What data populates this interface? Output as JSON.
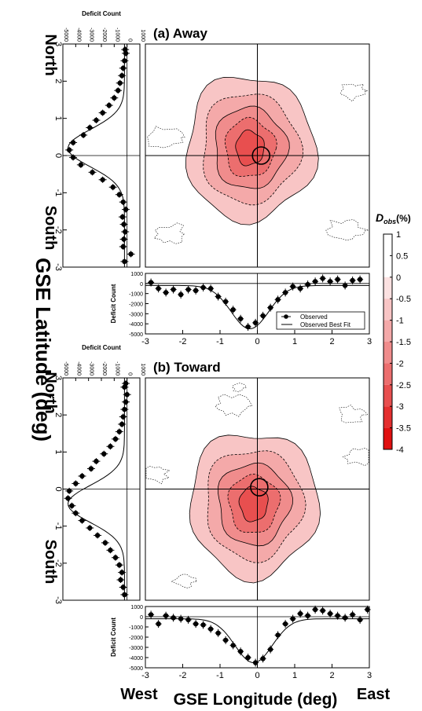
{
  "figure": {
    "ylabel": "GSE Latitude (deg)",
    "xlabel": "GSE Longitude (deg)",
    "west_label": "West",
    "east_label": "East",
    "north_label": "North",
    "south_label": "South"
  },
  "colorbar": {
    "title": "D",
    "title_sub": "obs",
    "title_suffix": "(%)",
    "ticks": [
      "1",
      "0.5",
      "0",
      "-0.5",
      "-1",
      "-1.5",
      "-2",
      "-2.5",
      "-3",
      "-3.5",
      "-4"
    ],
    "colors": [
      "#ffffff",
      "#ffffff",
      "#fbe1e1",
      "#f8c5c5",
      "#f4a9a9",
      "#f08c8c",
      "#ec6e6e",
      "#e84f4f",
      "#e42f2f",
      "#e01010"
    ]
  },
  "chart_data": [
    {
      "type": "heatmap",
      "title": "(a) Away",
      "xlim": [
        -3,
        3
      ],
      "ylim": [
        -3,
        3
      ],
      "x_ticks": [
        "-3",
        "-2",
        "-1",
        "0",
        "1",
        "2",
        "3"
      ],
      "y_ticks": [
        "-3",
        "-2",
        "-1",
        "0",
        "1",
        "2",
        "3"
      ],
      "deficit_center": [
        -0.2,
        0.2
      ],
      "levels": [
        -0.5,
        -1,
        -1.5,
        -2,
        -2.5
      ],
      "side_panel": {
        "xlabel": "Deficit Count",
        "x_ticks": [
          "-5000",
          "-4000",
          "-3000",
          "-2000",
          "-1000",
          "0",
          "1000"
        ],
        "latitudes": [
          -2.85,
          -2.65,
          -2.45,
          -2.25,
          -2.05,
          -1.85,
          -1.65,
          -1.45,
          -1.25,
          -1.05,
          -0.85,
          -0.65,
          -0.45,
          -0.25,
          -0.05,
          0.15,
          0.35,
          0.55,
          0.75,
          0.95,
          1.15,
          1.35,
          1.55,
          1.75,
          1.95,
          2.15,
          2.35,
          2.55,
          2.75,
          2.85
        ],
        "counts": [
          -200,
          300,
          -300,
          -250,
          -150,
          -250,
          -350,
          -100,
          -300,
          -600,
          -1100,
          -1900,
          -2700,
          -3600,
          -4200,
          -4500,
          -4200,
          -3400,
          -2900,
          -2400,
          -1900,
          -1400,
          -1000,
          -700,
          -550,
          -400,
          -300,
          -200,
          -100,
          -150
        ]
      },
      "bottom_panel": {
        "ylabel": "Deficit Count",
        "y_ticks": [
          "1000",
          "0",
          "-1000",
          "-2000",
          "-3000",
          "-4000",
          "-5000"
        ],
        "longitudes": [
          -2.85,
          -2.65,
          -2.45,
          -2.25,
          -2.05,
          -1.85,
          -1.65,
          -1.45,
          -1.25,
          -1.05,
          -0.85,
          -0.65,
          -0.45,
          -0.25,
          -0.05,
          0.15,
          0.35,
          0.55,
          0.75,
          0.95,
          1.15,
          1.35,
          1.55,
          1.75,
          1.95,
          2.15,
          2.35,
          2.55,
          2.75
        ],
        "counts": [
          100,
          -500,
          -900,
          -600,
          -1100,
          -600,
          -700,
          -400,
          -500,
          -1300,
          -1800,
          -2600,
          -3500,
          -4300,
          -3900,
          -3200,
          -2400,
          -1600,
          -900,
          -300,
          -500,
          -100,
          200,
          500,
          200,
          400,
          -200,
          300,
          400
        ],
        "legend": [
          "Observed",
          "Observed Best Fit"
        ]
      }
    },
    {
      "type": "heatmap",
      "title": "(b) Toward",
      "xlim": [
        -3,
        3
      ],
      "ylim": [
        -3,
        3
      ],
      "x_ticks": [
        "-3",
        "-2",
        "-1",
        "0",
        "1",
        "2",
        "3"
      ],
      "y_ticks": [
        "-3",
        "-2",
        "-1",
        "0",
        "1",
        "2",
        "3"
      ],
      "deficit_center": [
        -0.1,
        -0.4
      ],
      "levels": [
        -0.5,
        -1,
        -1.5,
        -2,
        -2.5
      ],
      "side_panel": {
        "xlabel": "Deficit Count",
        "x_ticks": [
          "-5000",
          "-4000",
          "-3000",
          "-2000",
          "-1000",
          "0",
          "1000"
        ],
        "latitudes": [
          -2.85,
          -2.65,
          -2.45,
          -2.25,
          -2.05,
          -1.85,
          -1.65,
          -1.45,
          -1.25,
          -1.05,
          -0.85,
          -0.65,
          -0.45,
          -0.25,
          -0.05,
          0.15,
          0.35,
          0.55,
          0.75,
          0.95,
          1.15,
          1.35,
          1.55,
          1.75,
          1.95,
          2.15,
          2.35,
          2.55,
          2.75,
          2.85
        ],
        "counts": [
          -200,
          -300,
          -500,
          -400,
          -600,
          -900,
          -1300,
          -1700,
          -2300,
          -2900,
          -3500,
          -4000,
          -4300,
          -4600,
          -4500,
          -4000,
          -3500,
          -2800,
          -2400,
          -1800,
          -1300,
          -900,
          -600,
          -400,
          -300,
          -200,
          -100,
          0,
          -200,
          -100
        ]
      },
      "bottom_panel": {
        "ylabel": "Deficit Count",
        "y_ticks": [
          "1000",
          "0",
          "-1000",
          "-2000",
          "-3000",
          "-4000",
          "-5000"
        ],
        "longitudes": [
          -2.85,
          -2.65,
          -2.45,
          -2.25,
          -2.05,
          -1.85,
          -1.65,
          -1.45,
          -1.25,
          -1.05,
          -0.85,
          -0.65,
          -0.45,
          -0.25,
          -0.05,
          0.15,
          0.35,
          0.55,
          0.75,
          0.95,
          1.15,
          1.35,
          1.55,
          1.75,
          1.95,
          2.15,
          2.35,
          2.55,
          2.75,
          2.95
        ],
        "counts": [
          200,
          -700,
          100,
          -100,
          -200,
          -300,
          -700,
          -800,
          -1200,
          -1600,
          -2300,
          -2800,
          -3400,
          -4000,
          -4500,
          -4100,
          -3200,
          -1800,
          -700,
          -200,
          300,
          100,
          700,
          600,
          300,
          100,
          -100,
          200,
          -300,
          700
        ]
      }
    }
  ]
}
